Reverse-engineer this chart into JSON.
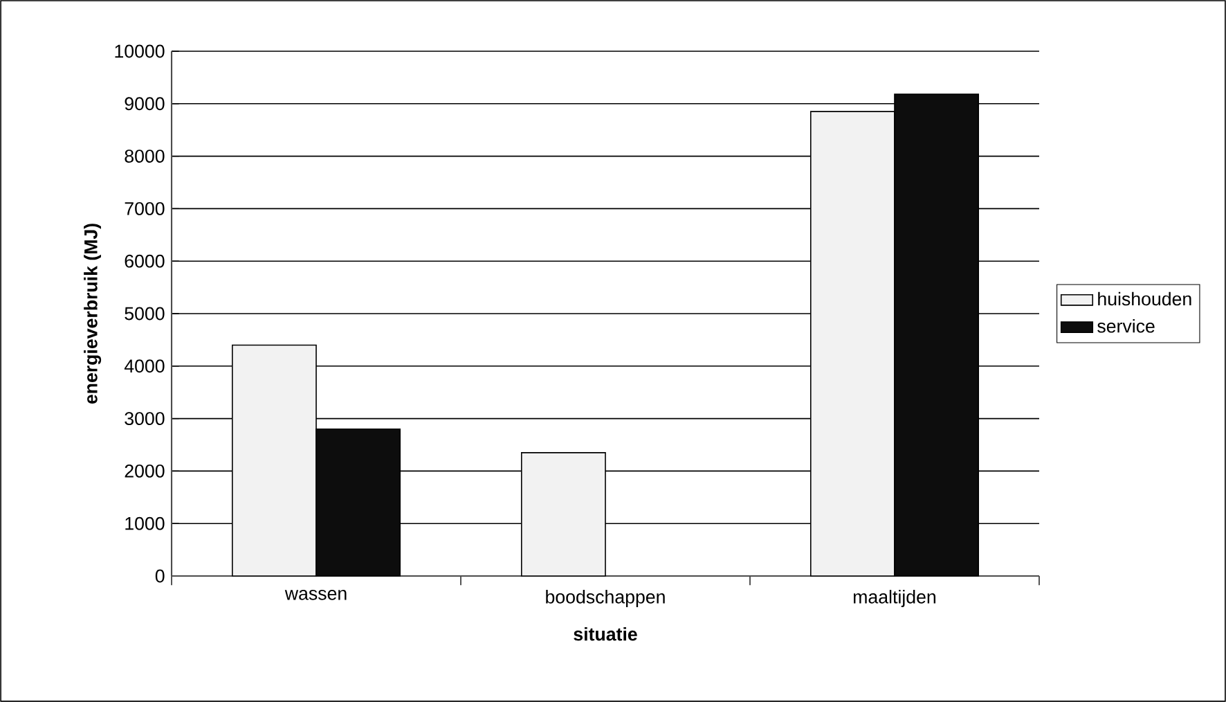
{
  "chart_data": {
    "type": "bar",
    "xlabel": "situatie",
    "ylabel": "energieverbruik (MJ)",
    "categories": [
      "wassen",
      "boodschappen",
      "maaltijden"
    ],
    "series": [
      {
        "name": "huishouden",
        "color": "#f2f2f2",
        "values": [
          4400,
          2350,
          8850
        ]
      },
      {
        "name": "service",
        "color": "#0d0d0d",
        "values": [
          2800,
          null,
          9180
        ]
      }
    ],
    "ylim": [
      0,
      10000
    ],
    "yticks": [
      0,
      1000,
      2000,
      3000,
      4000,
      5000,
      6000,
      7000,
      8000,
      9000,
      10000
    ],
    "grid": "y",
    "legend": "right"
  }
}
